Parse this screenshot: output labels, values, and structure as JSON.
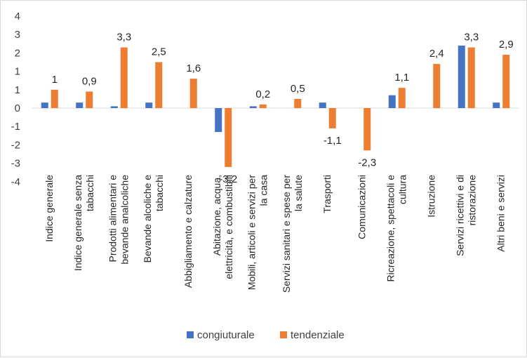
{
  "chart_data": {
    "type": "bar",
    "categories": [
      [
        "Indice generale"
      ],
      [
        "Indice generale senza",
        "tabacchi"
      ],
      [
        "Prodotti alimentari e",
        "bevande analcoliche"
      ],
      [
        "Bevande alcoliche e",
        "tabacchi"
      ],
      [
        "Abbigliamento e calzature"
      ],
      [
        "Abitazione, acqua,",
        "elettricità, e combustibili"
      ],
      [
        "Mobili, articoli e servizi per",
        "la casa"
      ],
      [
        "Servizi sanitari e spese per",
        "la salute"
      ],
      [
        "Trasporti"
      ],
      [
        "Comunicazioni"
      ],
      [
        "Ricreazione, spettacoli e",
        "cultura"
      ],
      [
        "Istruzione"
      ],
      [
        "Servizi ricettivi e di",
        "ristorazione"
      ],
      [
        "Altri beni e servizi"
      ]
    ],
    "series": [
      {
        "name": "congiuturale",
        "color": "#4472c4",
        "values": [
          0.3,
          0.3,
          0.1,
          0.3,
          0.0,
          -1.3,
          0.1,
          0.0,
          0.3,
          0.0,
          0.7,
          0.0,
          3.4,
          0.3
        ]
      },
      {
        "name": "tendenziale",
        "color": "#ed7d31",
        "values": [
          1.0,
          0.9,
          3.3,
          2.5,
          1.6,
          -3.2,
          0.2,
          0.5,
          -1.1,
          -2.3,
          1.1,
          2.4,
          3.3,
          2.9
        ]
      }
    ],
    "data_labels": [
      "1",
      "0,9",
      "3,3",
      "2,5",
      "1,6",
      "-3,2",
      "0,2",
      "0,5",
      "-1,1",
      "-2,3",
      "1,1",
      "2,4",
      "3,3",
      "2,9"
    ],
    "y_ticks": [
      "4",
      "3",
      "2",
      "1",
      "1",
      "0",
      "-1",
      "-2",
      "-3",
      "-4"
    ],
    "ylim": [
      -4,
      4
    ],
    "grid": false,
    "legend": "bottom"
  }
}
